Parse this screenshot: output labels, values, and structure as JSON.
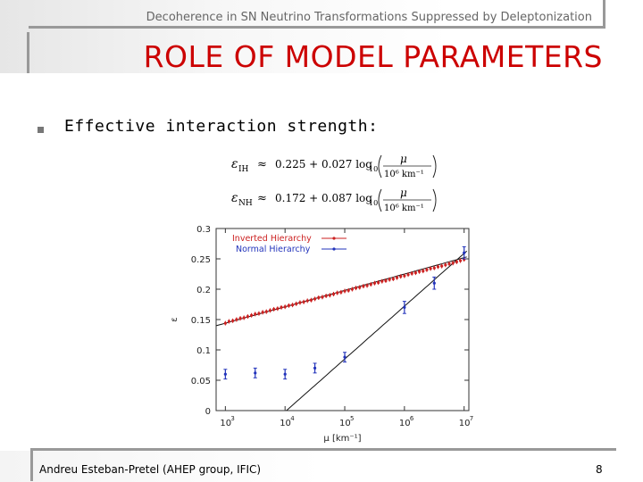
{
  "header": {
    "running_title": "Decoherence in SN Neutrino Transformations Suppressed by Deleptonization",
    "slide_title": "ROLE OF MODEL PARAMETERS"
  },
  "bullet": {
    "marker": "n",
    "text": "Effective interaction strength:"
  },
  "equations": [
    {
      "lhs": "ε",
      "sub": "IH",
      "rel": "≈",
      "rhs": "0.225 + 0.027 log",
      "log_sub": "10",
      "frac_num": "μ",
      "frac_den": "10⁶ km⁻¹"
    },
    {
      "lhs": "ε",
      "sub": "NH",
      "rel": "≈",
      "rhs": "0.172 + 0.087 log",
      "log_sub": "10",
      "frac_num": "μ",
      "frac_den": "10⁶ km⁻¹"
    }
  ],
  "colors": {
    "title": "#cc0000",
    "inverted": "#cc2222",
    "normal": "#2233bb",
    "fit": "#111111"
  },
  "chart_data": {
    "type": "scatter",
    "xlabel": "μ [km⁻¹]",
    "ylabel": "ε",
    "x_scale": "log",
    "xlim": [
      700,
      12000000
    ],
    "ylim": [
      0,
      0.3
    ],
    "x_ticks": [
      1000,
      10000,
      100000,
      1000000,
      10000000
    ],
    "x_tick_labels": [
      {
        "base": "10",
        "exp": "3"
      },
      {
        "base": "10",
        "exp": "4"
      },
      {
        "base": "10",
        "exp": "5"
      },
      {
        "base": "10",
        "exp": "6"
      },
      {
        "base": "10",
        "exp": "7"
      }
    ],
    "y_ticks": [
      0,
      0.05,
      0.1,
      0.15,
      0.2,
      0.25,
      0.3
    ],
    "y_tick_labels": [
      "0",
      "0.05",
      "0.1",
      "0.15",
      "0.2",
      "0.25",
      "0.3"
    ],
    "legend_position": "top-left",
    "series": [
      {
        "name": "Inverted Hierarchy",
        "x": [
          1000,
          1150,
          1330,
          1540,
          1780,
          2050,
          2370,
          2740,
          3160,
          3650,
          4220,
          4870,
          5620,
          6490,
          7500,
          8660,
          10000,
          11550,
          13340,
          15400,
          17800,
          20540,
          23710,
          27380,
          31620,
          36520,
          42170,
          48700,
          56230,
          64940,
          74990,
          86600,
          100000,
          115500,
          133400,
          154000,
          177800,
          205400,
          237100,
          273800,
          316200,
          365200,
          421700,
          487000,
          562300,
          649400,
          749900,
          866000,
          1000000,
          1155000,
          1334000,
          1540000,
          1778000,
          2054000,
          2371000,
          2738000,
          3162000,
          3652000,
          4217000,
          4870000,
          5623000,
          6494000,
          7499000,
          8660000,
          10000000
        ],
        "y": [
          0.144,
          0.147,
          0.148,
          0.15,
          0.152,
          0.153,
          0.155,
          0.157,
          0.159,
          0.16,
          0.162,
          0.163,
          0.165,
          0.167,
          0.168,
          0.17,
          0.171,
          0.173,
          0.174,
          0.176,
          0.178,
          0.179,
          0.181,
          0.182,
          0.184,
          0.186,
          0.187,
          0.189,
          0.19,
          0.192,
          0.194,
          0.195,
          0.197,
          0.198,
          0.2,
          0.202,
          0.203,
          0.205,
          0.206,
          0.208,
          0.21,
          0.211,
          0.213,
          0.214,
          0.216,
          0.217,
          0.219,
          0.221,
          0.222,
          0.224,
          0.226,
          0.227,
          0.229,
          0.23,
          0.232,
          0.234,
          0.235,
          0.237,
          0.238,
          0.24,
          0.242,
          0.243,
          0.245,
          0.247,
          0.249
        ]
      },
      {
        "name": "Normal Hierarchy",
        "x": [
          1000,
          3160,
          10000,
          31600,
          100000,
          1000000,
          3160000,
          10000000
        ],
        "y": [
          0.06,
          0.062,
          0.06,
          0.07,
          0.088,
          0.17,
          0.21,
          0.26
        ],
        "err": [
          0.008,
          0.008,
          0.008,
          0.008,
          0.008,
          0.01,
          0.01,
          0.01
        ]
      }
    ],
    "fits": [
      {
        "name": "IH fit",
        "a": 0.225,
        "b": 0.027
      },
      {
        "name": "NH fit",
        "a": 0.172,
        "b": 0.087
      }
    ]
  },
  "footer": {
    "author": "Andreu Esteban-Pretel (AHEP group, IFIC)",
    "page": "8"
  }
}
